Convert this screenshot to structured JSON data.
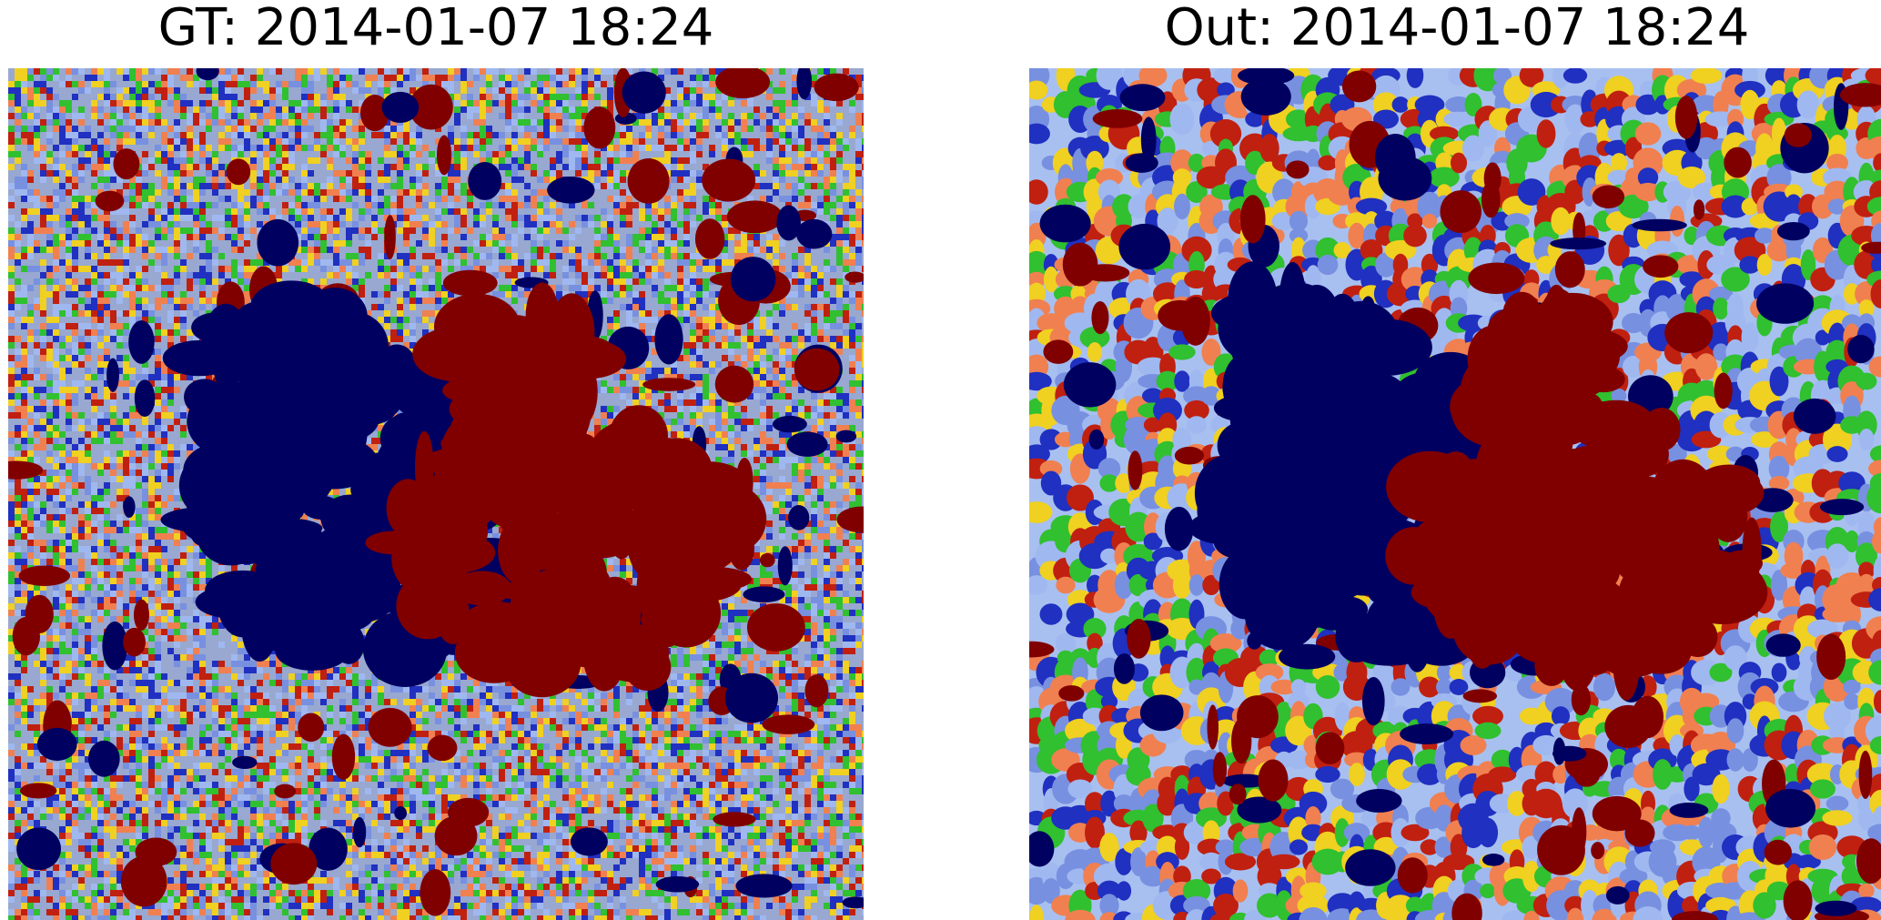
{
  "figure": {
    "panels": [
      {
        "id": "gt",
        "title": "GT: 2014-01-07 18:24",
        "colormap": [
          "#000060",
          "#2030c0",
          "#7890e0",
          "#a0b8f0",
          "#30c030",
          "#f0d020",
          "#f08050",
          "#c02010",
          "#800000"
        ]
      },
      {
        "id": "out",
        "title": "Out: 2014-01-07 18:24",
        "colormap": [
          "#000060",
          "#2030c0",
          "#7890e0",
          "#a0b8f0",
          "#30c030",
          "#f0d020",
          "#f08050",
          "#c02010",
          "#800000"
        ]
      }
    ],
    "colors": {
      "negative_polarity": "#000060",
      "positive_polarity": "#800000",
      "background": "#ffffff"
    }
  }
}
